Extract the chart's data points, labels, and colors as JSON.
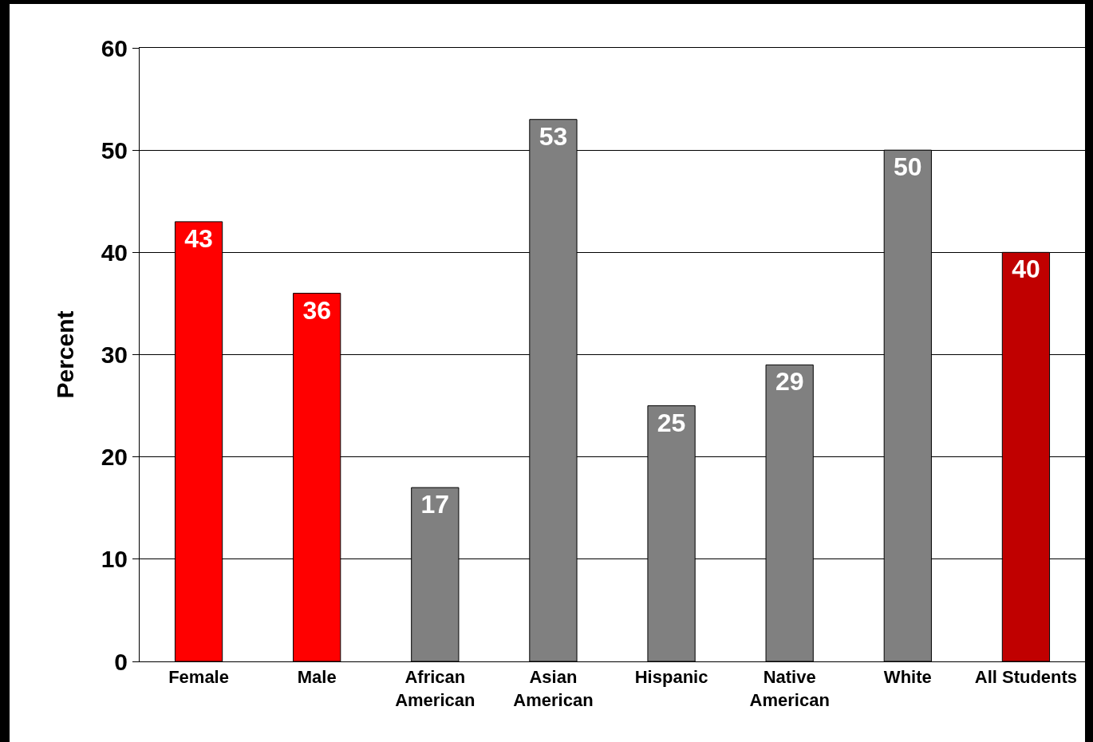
{
  "chart_data": {
    "type": "bar",
    "ylabel": "Percent",
    "categories": [
      "Female",
      "Male",
      "African\nAmerican",
      "Asian\nAmerican",
      "Hispanic",
      "Native\nAmerican",
      "White",
      "All Students"
    ],
    "values": [
      43,
      36,
      17,
      53,
      25,
      29,
      50,
      40
    ],
    "colors": [
      "#ff0000",
      "#ff0000",
      "#808080",
      "#808080",
      "#808080",
      "#808080",
      "#808080",
      "#c00000"
    ],
    "ylim": [
      0,
      60
    ],
    "yticks": [
      0,
      10,
      20,
      30,
      40,
      50,
      60
    ],
    "grid": "y",
    "legend": false,
    "data_labels": true
  }
}
